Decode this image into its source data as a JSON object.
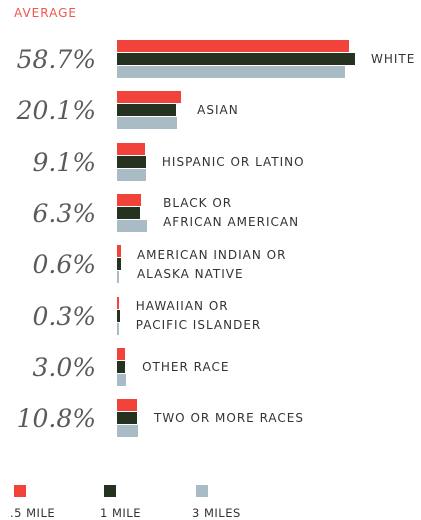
{
  "chart_data": {
    "type": "bar",
    "orientation": "horizontal",
    "title": "AVERAGE",
    "categories": [
      "WHITE",
      "ASIAN",
      "HISPANIC OR LATINO",
      "BLACK OR\nAFRICAN AMERICAN",
      "AMERICAN INDIAN OR\nALASKA NATIVE",
      "HAWAIIAN OR\nPACIFIC ISLANDER",
      "OTHER RACE",
      "TWO OR MORE RACES"
    ],
    "averages": [
      58.7,
      20.1,
      9.1,
      6.3,
      0.6,
      0.3,
      3.0,
      10.8
    ],
    "average_labels": [
      "58.7%",
      "20.1%",
      "9.1%",
      "6.3%",
      "0.6%",
      "0.3%",
      "3.0%",
      "10.8%"
    ],
    "series": [
      {
        "name": ".5 MILE",
        "color": "#f2433a",
        "values": [
          58.5,
          16.2,
          7.1,
          6.1,
          1.0,
          0.5,
          2.0,
          5.1
        ]
      },
      {
        "name": "1 MILE",
        "color": "#25321f",
        "values": [
          60.1,
          14.9,
          7.3,
          5.8,
          1.0,
          0.7,
          2.0,
          5.1
        ]
      },
      {
        "name": "3 MILES",
        "color": "#a9bcc6",
        "values": [
          57.5,
          15.2,
          7.3,
          7.6,
          0.5,
          0.4,
          2.3,
          5.3
        ]
      }
    ]
  }
}
